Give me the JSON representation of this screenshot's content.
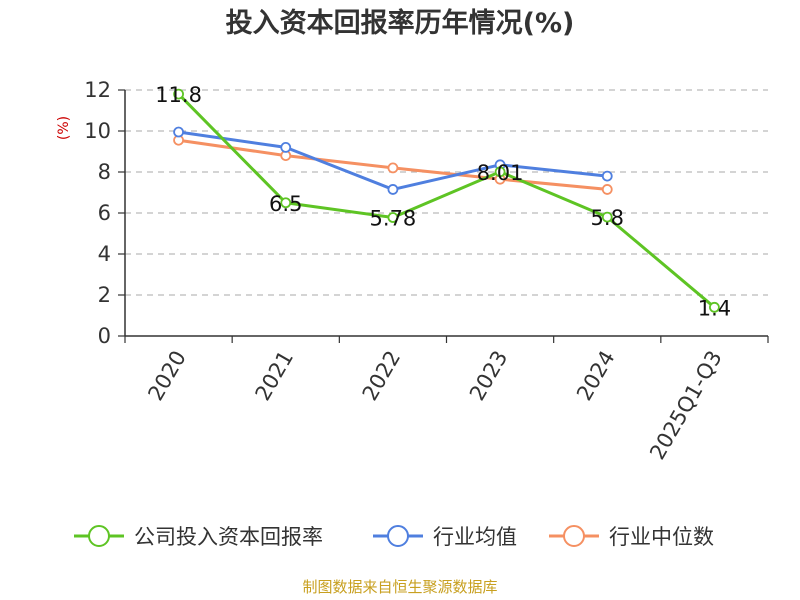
{
  "title": "投入资本回报率历年情况(%)",
  "source": "制图数据来自恒生聚源数据库",
  "chart_data": {
    "type": "line",
    "title": "投入资本回报率历年情况(%)",
    "ylabel": "(%)",
    "xlabel": "",
    "categories": [
      "2020",
      "2021",
      "2022",
      "2023",
      "2024",
      "2025Q1-Q3"
    ],
    "ylim": [
      0,
      12
    ],
    "yticks": [
      0,
      2,
      4,
      6,
      8,
      10,
      12
    ],
    "grid": true,
    "legend_position": "bottom",
    "series": [
      {
        "name": "公司投入资本回报率",
        "color": "#5ec424",
        "values": [
          11.8,
          6.5,
          5.78,
          8.01,
          5.8,
          1.4
        ],
        "labels": [
          "11.8",
          "6.5",
          "5.78",
          "8.01",
          "5.8",
          "1.4"
        ]
      },
      {
        "name": "行业均值",
        "color": "#4f7fdf",
        "values": [
          9.95,
          9.2,
          7.15,
          8.35,
          7.8,
          null
        ]
      },
      {
        "name": "行业中位数",
        "color": "#f59062",
        "values": [
          9.55,
          8.8,
          8.2,
          7.65,
          7.15,
          null
        ]
      }
    ]
  }
}
